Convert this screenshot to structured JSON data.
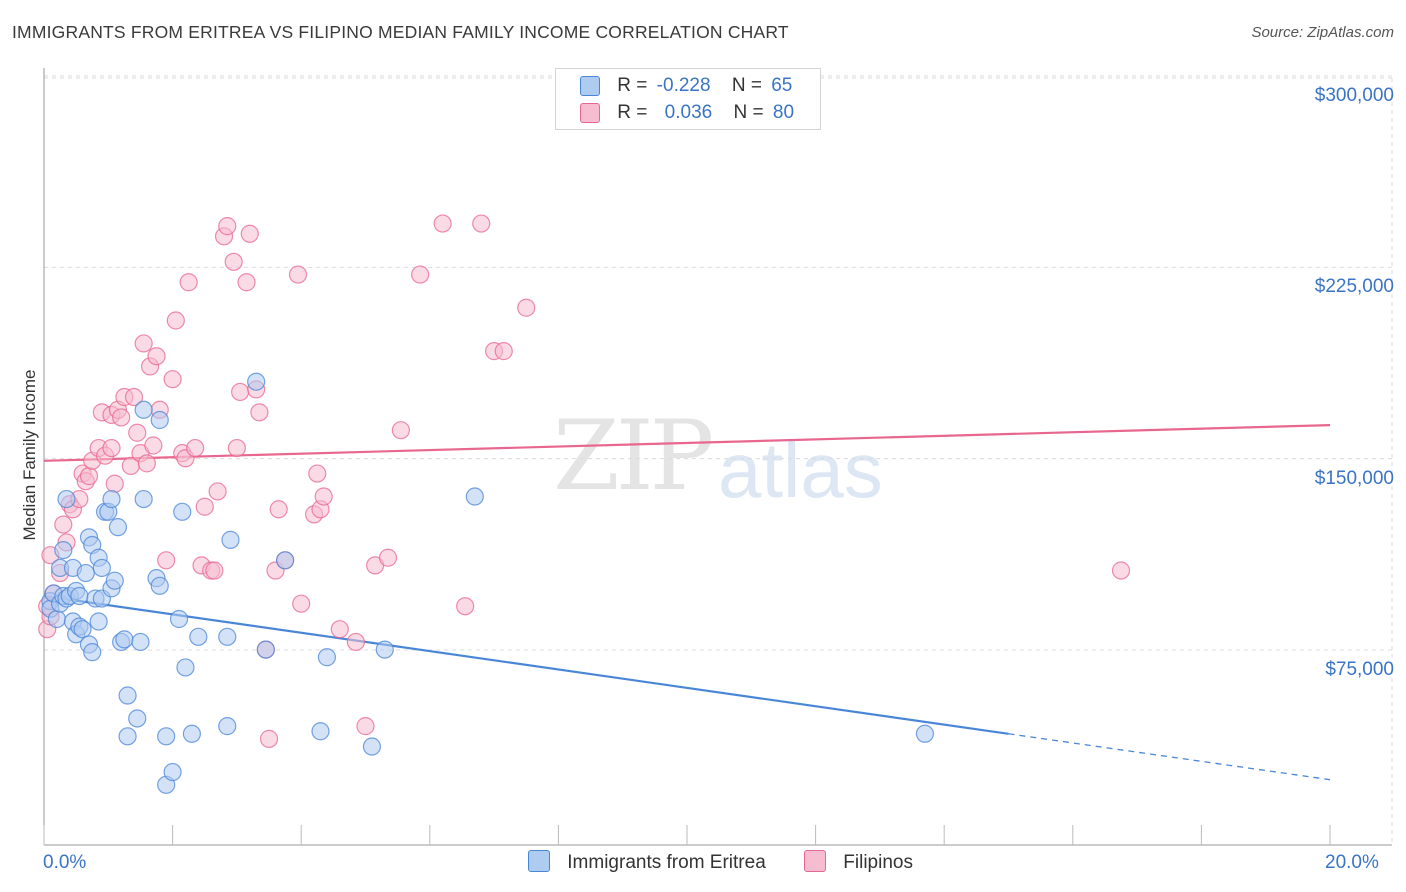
{
  "title": "IMMIGRANTS FROM ERITREA VS FILIPINO MEDIAN FAMILY INCOME CORRELATION CHART",
  "source": "Source: ZipAtlas.com",
  "watermark": {
    "zip": "ZIP",
    "atlas": "atlas"
  },
  "legend": {
    "rows": [
      {
        "r_label": "R =",
        "r_value": "-0.228",
        "n_label": "N =",
        "n_value": "65",
        "color": "#aecbf0"
      },
      {
        "r_label": "R =",
        "r_value": "0.036",
        "n_label": "N =",
        "n_value": "80",
        "color": "#f6bcd0"
      }
    ]
  },
  "bottom_legend": [
    {
      "label": "Immigrants from Eritrea",
      "color": "#aecbf0"
    },
    {
      "label": "Filipinos",
      "color": "#f6bcd0"
    }
  ],
  "chart_data": {
    "type": "scatter",
    "title": "IMMIGRANTS FROM ERITREA VS FILIPINO MEDIAN FAMILY INCOME CORRELATION CHART",
    "xlabel": "",
    "ylabel": "Median Family Income",
    "xlim": [
      0,
      20
    ],
    "ylim": [
      0,
      310000
    ],
    "x_tick_labels": [
      "0.0%",
      "20.0%"
    ],
    "y_ticks": [
      75000,
      150000,
      225000,
      300000
    ],
    "y_tick_labels": [
      "$75,000",
      "$150,000",
      "$225,000",
      "$300,000"
    ],
    "grid": true,
    "legend_position": "top-center",
    "series": [
      {
        "name": "Immigrants from Eritrea",
        "color": "#4a86d8",
        "fill": "#aecbf0",
        "trend": {
          "x0": 0,
          "y0": 104000,
          "x1": 15,
          "y1": 50000,
          "dashed_to_x": 20,
          "dashed_to_y": 32000
        },
        "points": [
          [
            0.1,
            102000
          ],
          [
            0.1,
            99000
          ],
          [
            0.15,
            105000
          ],
          [
            0.2,
            95000
          ],
          [
            0.25,
            115000
          ],
          [
            0.25,
            101000
          ],
          [
            0.3,
            122000
          ],
          [
            0.3,
            104000
          ],
          [
            0.35,
            142000
          ],
          [
            0.35,
            103000
          ],
          [
            0.4,
            104000
          ],
          [
            0.45,
            115000
          ],
          [
            0.45,
            94000
          ],
          [
            0.5,
            106000
          ],
          [
            0.5,
            89000
          ],
          [
            0.55,
            92000
          ],
          [
            0.55,
            104000
          ],
          [
            0.6,
            91000
          ],
          [
            0.65,
            113000
          ],
          [
            0.7,
            127000
          ],
          [
            0.7,
            85000
          ],
          [
            0.75,
            82000
          ],
          [
            0.75,
            124000
          ],
          [
            0.8,
            103000
          ],
          [
            0.85,
            94000
          ],
          [
            0.85,
            119000
          ],
          [
            0.9,
            115000
          ],
          [
            0.9,
            103000
          ],
          [
            0.95,
            137000
          ],
          [
            1.0,
            137000
          ],
          [
            1.05,
            142000
          ],
          [
            1.05,
            107000
          ],
          [
            1.1,
            110000
          ],
          [
            1.15,
            131000
          ],
          [
            1.2,
            86000
          ],
          [
            1.25,
            87000
          ],
          [
            1.3,
            65000
          ],
          [
            1.3,
            49000
          ],
          [
            1.45,
            56000
          ],
          [
            1.5,
            86000
          ],
          [
            1.55,
            142000
          ],
          [
            1.55,
            177000
          ],
          [
            1.75,
            111000
          ],
          [
            1.8,
            173000
          ],
          [
            1.8,
            108000
          ],
          [
            1.9,
            49000
          ],
          [
            1.9,
            30000
          ],
          [
            2.0,
            35000
          ],
          [
            2.1,
            95000
          ],
          [
            2.15,
            137000
          ],
          [
            2.2,
            76000
          ],
          [
            2.3,
            50000
          ],
          [
            2.4,
            88000
          ],
          [
            2.85,
            53000
          ],
          [
            2.9,
            126000
          ],
          [
            2.85,
            88000
          ],
          [
            3.3,
            188000
          ],
          [
            3.45,
            83000
          ],
          [
            3.75,
            118000
          ],
          [
            4.3,
            51000
          ],
          [
            4.4,
            80000
          ],
          [
            5.1,
            45000
          ],
          [
            5.3,
            83000
          ],
          [
            6.7,
            143000
          ],
          [
            13.7,
            50000
          ]
        ]
      },
      {
        "name": "Filipinos",
        "color": "#e8678f",
        "fill": "#f6bcd0",
        "trend": {
          "x0": 0,
          "y0": 157000,
          "x1": 20,
          "y1": 171000
        },
        "points": [
          [
            0.05,
            91000
          ],
          [
            0.1,
            96000
          ],
          [
            0.15,
            105000
          ],
          [
            0.25,
            113000
          ],
          [
            0.3,
            132000
          ],
          [
            0.35,
            125000
          ],
          [
            0.4,
            140000
          ],
          [
            0.45,
            138000
          ],
          [
            0.55,
            142000
          ],
          [
            0.6,
            152000
          ],
          [
            0.65,
            149000
          ],
          [
            0.7,
            151000
          ],
          [
            0.75,
            157000
          ],
          [
            0.85,
            162000
          ],
          [
            0.9,
            176000
          ],
          [
            0.95,
            159000
          ],
          [
            1.05,
            175000
          ],
          [
            1.05,
            162000
          ],
          [
            1.1,
            148000
          ],
          [
            1.15,
            177000
          ],
          [
            1.2,
            174000
          ],
          [
            1.25,
            182000
          ],
          [
            1.35,
            155000
          ],
          [
            1.4,
            182000
          ],
          [
            1.45,
            168000
          ],
          [
            1.5,
            160000
          ],
          [
            1.55,
            203000
          ],
          [
            1.6,
            156000
          ],
          [
            1.65,
            194000
          ],
          [
            1.7,
            163000
          ],
          [
            1.75,
            198000
          ],
          [
            1.8,
            177000
          ],
          [
            1.9,
            118000
          ],
          [
            2.0,
            189000
          ],
          [
            2.05,
            212000
          ],
          [
            2.15,
            160000
          ],
          [
            2.2,
            158000
          ],
          [
            2.25,
            227000
          ],
          [
            2.35,
            162000
          ],
          [
            2.45,
            116000
          ],
          [
            2.5,
            139000
          ],
          [
            2.6,
            114000
          ],
          [
            2.65,
            114000
          ],
          [
            2.7,
            145000
          ],
          [
            2.8,
            245000
          ],
          [
            2.85,
            249000
          ],
          [
            2.95,
            235000
          ],
          [
            3.0,
            162000
          ],
          [
            3.05,
            184000
          ],
          [
            3.15,
            227000
          ],
          [
            3.2,
            246000
          ],
          [
            3.3,
            185000
          ],
          [
            3.35,
            176000
          ],
          [
            3.45,
            83000
          ],
          [
            3.5,
            48000
          ],
          [
            3.6,
            114000
          ],
          [
            3.65,
            138000
          ],
          [
            3.75,
            118000
          ],
          [
            3.95,
            230000
          ],
          [
            4.0,
            101000
          ],
          [
            4.2,
            136000
          ],
          [
            4.25,
            152000
          ],
          [
            4.3,
            138000
          ],
          [
            4.35,
            143000
          ],
          [
            4.6,
            91000
          ],
          [
            4.85,
            86000
          ],
          [
            5.0,
            53000
          ],
          [
            5.15,
            116000
          ],
          [
            5.35,
            119000
          ],
          [
            5.55,
            169000
          ],
          [
            5.85,
            230000
          ],
          [
            6.2,
            250000
          ],
          [
            6.55,
            100000
          ],
          [
            6.8,
            250000
          ],
          [
            7.0,
            200000
          ],
          [
            7.15,
            200000
          ],
          [
            7.5,
            217000
          ],
          [
            16.75,
            114000
          ],
          [
            0.05,
            100000
          ],
          [
            0.1,
            120000
          ]
        ]
      }
    ]
  }
}
